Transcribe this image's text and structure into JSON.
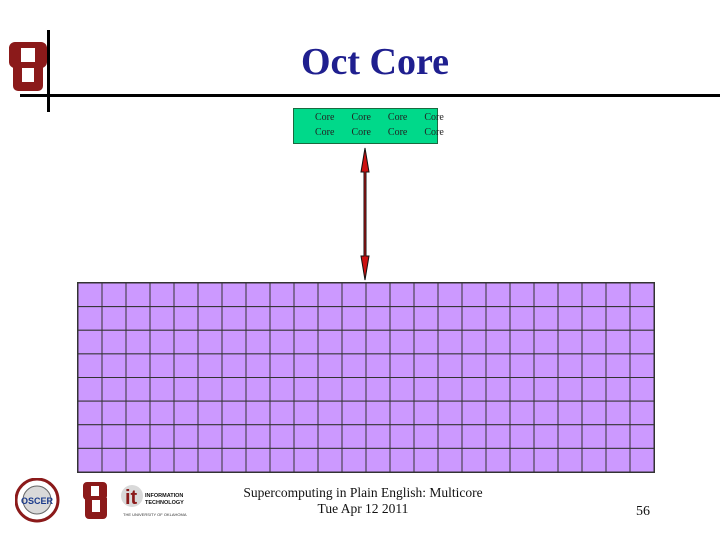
{
  "slide": {
    "title": "Oct Core",
    "cores": {
      "labels": [
        "Core",
        "Core",
        "Core",
        "Core",
        "Core",
        "Core",
        "Core",
        "Core"
      ],
      "color": "#00d98a"
    },
    "memory": {
      "rows": 8,
      "cols": 24,
      "color": "#cc99ff"
    },
    "arrow_color": "#cc1111",
    "footer": {
      "line1": "Supercomputing in Plain English: Multicore",
      "line2": "Tue Apr 12 2011"
    },
    "page_number": "56",
    "logos": [
      "OSCER",
      "it",
      "INFORMATION TECHNOLOGY",
      "THE UNIVERSITY OF OKLAHOMA"
    ]
  }
}
